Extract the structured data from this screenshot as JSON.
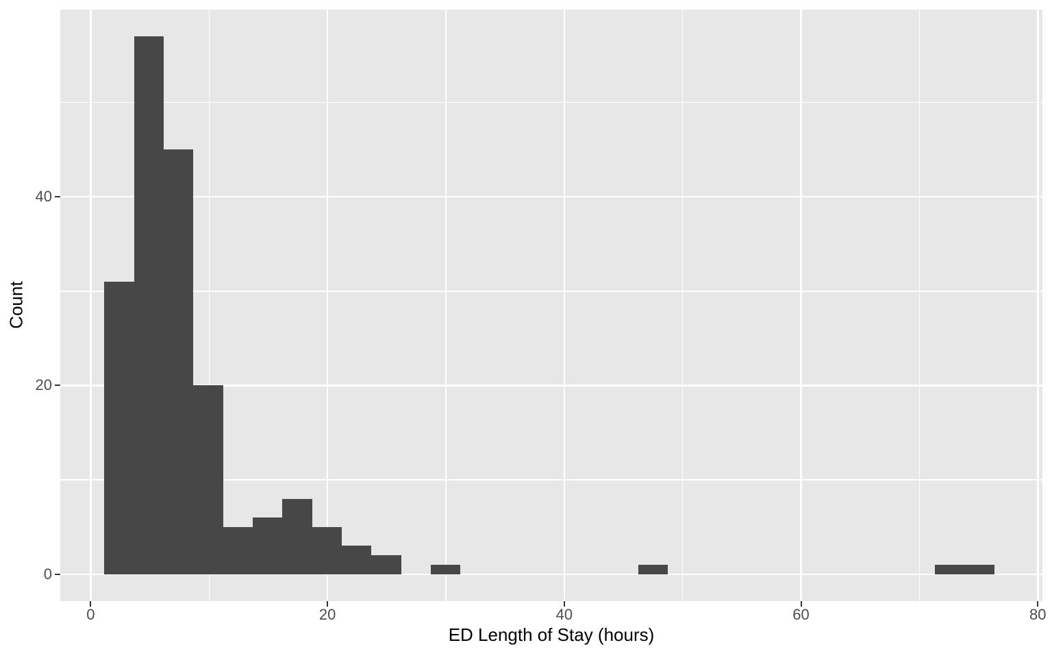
{
  "chart_data": {
    "type": "bar",
    "subtype": "histogram",
    "title": "",
    "xlabel": "ED Length of Stay (hours)",
    "ylabel": "Count",
    "bin_edges": [
      1.16,
      3.67,
      6.17,
      8.68,
      11.18,
      13.69,
      16.2,
      18.7,
      21.21,
      23.71,
      26.22,
      28.73,
      31.23,
      33.74,
      36.24,
      38.75,
      41.25,
      43.76,
      46.26,
      48.77,
      51.27,
      53.78,
      56.28,
      58.79,
      61.3,
      63.8,
      66.31,
      68.81,
      71.32,
      73.82,
      76.33
    ],
    "counts": [
      31,
      57,
      45,
      20,
      5,
      6,
      8,
      5,
      3,
      2,
      0,
      1,
      0,
      0,
      0,
      0,
      0,
      0,
      1,
      0,
      0,
      0,
      0,
      0,
      0,
      0,
      0,
      0,
      1,
      1
    ],
    "binwidth": 2.5,
    "total_n": 186,
    "xlim": [
      -2.57,
      80.39
    ],
    "ylim": [
      -2.85,
      59.85
    ],
    "x_ticks": [
      0,
      20,
      40,
      60,
      80
    ],
    "y_ticks": [
      0,
      20,
      40
    ],
    "x_minor_gridlines": [
      10,
      30,
      50,
      70
    ],
    "y_minor_gridlines": [
      10,
      30,
      50
    ],
    "grid": true,
    "legend": "none",
    "colors": {
      "bar_fill": "#474747",
      "panel_background": "#E7E7E7",
      "gridline": "#FFFFFF",
      "tick_label": "#4D4D4D",
      "axis_title": "#000000",
      "tick_mark": "#333333",
      "page_background": "#FFFFFF"
    }
  }
}
